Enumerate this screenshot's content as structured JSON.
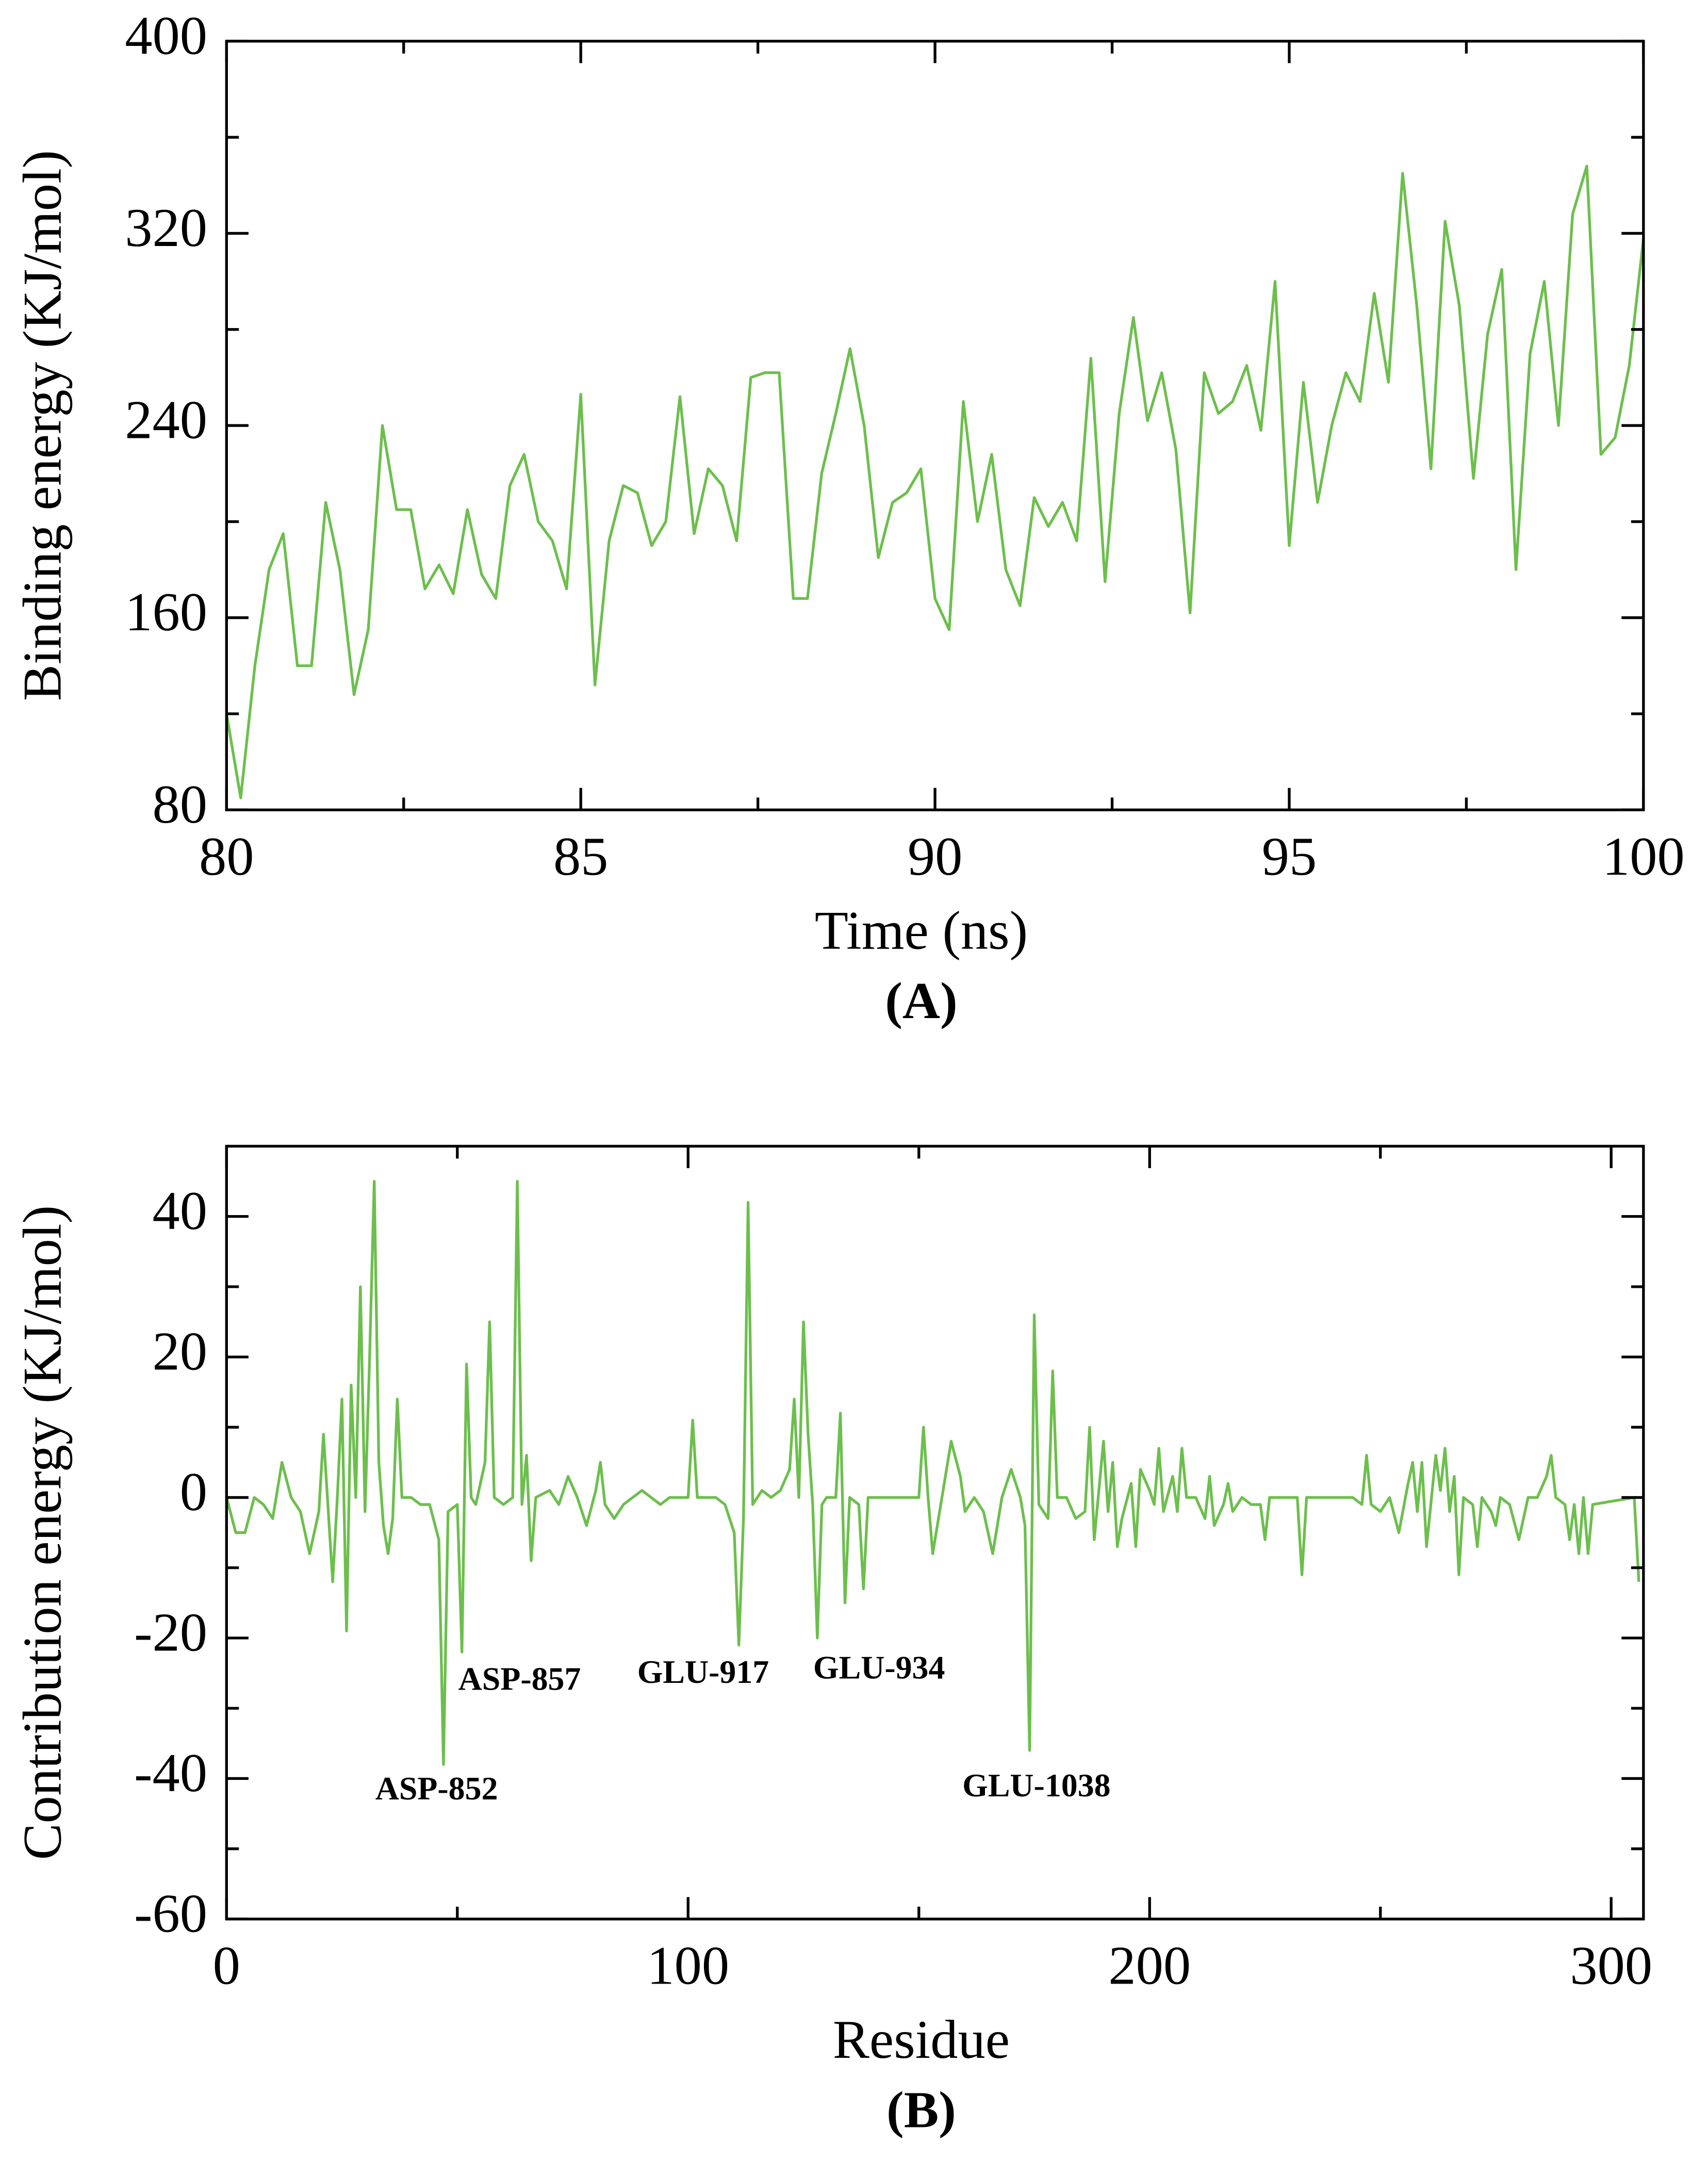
{
  "chart_data": [
    {
      "type": "line",
      "xlabel": "Time (ns)",
      "ylabel": "Binding energy (KJ/mol)",
      "panel_label": "(A)",
      "xlim": [
        80,
        100
      ],
      "xticks": [
        80,
        85,
        90,
        95,
        100
      ],
      "xminor": [
        82.5,
        87.5,
        92.5,
        97.5
      ],
      "ylim": [
        80,
        400
      ],
      "yticks": [
        80,
        160,
        240,
        320,
        400
      ],
      "yminor": [
        120,
        200,
        280,
        360
      ],
      "series": [
        {
          "color": "#6cbf4c",
          "x": [
            80,
            80.2,
            80.4,
            80.6,
            80.8,
            81,
            81.2,
            81.4,
            81.6,
            81.8,
            82,
            82.2,
            82.4,
            82.6,
            82.8,
            83,
            83.2,
            83.4,
            83.6,
            83.8,
            84,
            84.2,
            84.4,
            84.6,
            84.8,
            85,
            85.2,
            85.4,
            85.6,
            85.8,
            86,
            86.2,
            86.4,
            86.6,
            86.8,
            87,
            87.2,
            87.4,
            87.6,
            87.8,
            88,
            88.2,
            88.4,
            88.6,
            88.8,
            89,
            89.2,
            89.4,
            89.6,
            89.8,
            90,
            90.2,
            90.4,
            90.6,
            90.8,
            91,
            91.2,
            91.4,
            91.6,
            91.8,
            92,
            92.2,
            92.4,
            92.6,
            92.8,
            93,
            93.2,
            93.4,
            93.6,
            93.8,
            94,
            94.2,
            94.4,
            94.6,
            94.8,
            95,
            95.2,
            95.4,
            95.6,
            95.8,
            96,
            96.2,
            96.4,
            96.6,
            96.8,
            97,
            97.2,
            97.4,
            97.6,
            97.8,
            98,
            98.2,
            98.4,
            98.6,
            98.8,
            99,
            99.2,
            99.4,
            99.6,
            99.8,
            100
          ],
          "values": [
            120,
            85,
            140,
            180,
            195,
            140,
            140,
            208,
            180,
            128,
            155,
            240,
            205,
            205,
            172,
            182,
            170,
            205,
            178,
            168,
            215,
            228,
            200,
            192,
            172,
            253,
            132,
            192,
            215,
            212,
            190,
            200,
            252,
            195,
            222,
            215,
            192,
            260,
            262,
            262,
            168,
            168,
            220,
            245,
            272,
            240,
            185,
            208,
            212,
            222,
            168,
            155,
            250,
            200,
            228,
            180,
            165,
            210,
            198,
            208,
            192,
            268,
            175,
            245,
            285,
            242,
            262,
            230,
            162,
            262,
            245,
            250,
            265,
            238,
            300,
            190,
            258,
            208,
            240,
            262,
            250,
            295,
            258,
            345,
            290,
            222,
            325,
            290,
            218,
            278,
            305,
            180,
            270,
            300,
            240,
            328,
            348,
            228,
            235,
            265,
            318
          ]
        }
      ]
    },
    {
      "type": "line",
      "xlabel": "Residue",
      "ylabel": "Contribution energy (KJ/mol)",
      "panel_label": "(B)",
      "xlim": [
        0,
        307
      ],
      "xticks": [
        0,
        100,
        200,
        300
      ],
      "xminor": [
        50,
        150,
        250
      ],
      "ylim": [
        -60,
        50
      ],
      "yticks": [
        -60,
        -40,
        -20,
        0,
        20,
        40
      ],
      "yminor": [
        -50,
        -30,
        -10,
        10,
        30
      ],
      "annotations": [
        {
          "text": "ASP-852",
          "x": 47,
          "y": -38
        },
        {
          "text": "ASP-857",
          "x": 51,
          "y": -22
        },
        {
          "text": "GLU-917",
          "x": 111,
          "y": -21
        },
        {
          "text": "GLU-934",
          "x": 128,
          "y": -20
        },
        {
          "text": "GLU-1038",
          "x": 174,
          "y": -36
        }
      ],
      "series": [
        {
          "color": "#6cbf4c",
          "x": [
            0,
            2,
            4,
            6,
            8,
            10,
            12,
            14,
            16,
            18,
            20,
            21,
            23,
            24,
            25,
            26,
            27,
            28,
            29,
            30,
            31,
            32,
            33,
            34,
            35,
            36,
            37,
            38,
            40,
            42,
            44,
            46,
            47,
            48,
            50,
            51,
            52,
            53,
            54,
            56,
            57,
            58,
            60,
            62,
            63,
            64,
            65,
            66,
            67,
            70,
            72,
            74,
            76,
            78,
            80,
            81,
            82,
            84,
            86,
            88,
            90,
            92,
            94,
            96,
            98,
            100,
            101,
            102,
            104,
            106,
            108,
            110,
            111,
            112,
            113,
            114,
            116,
            118,
            120,
            122,
            123,
            124,
            125,
            126,
            127,
            128,
            129,
            130,
            132,
            133,
            134,
            135,
            137,
            138,
            139,
            142,
            146,
            150,
            151,
            152,
            153,
            155,
            157,
            159,
            160,
            162,
            164,
            166,
            168,
            170,
            172,
            173,
            174,
            175,
            176,
            178,
            179,
            180,
            182,
            184,
            186,
            187,
            188,
            190,
            191,
            192,
            193,
            194,
            196,
            197,
            198,
            200,
            201,
            202,
            203,
            205,
            206,
            207,
            208,
            210,
            212,
            213,
            214,
            216,
            217,
            218,
            220,
            222,
            224,
            225,
            226,
            228,
            230,
            232,
            233,
            234,
            236,
            240,
            244,
            246,
            247,
            248,
            250,
            252,
            254,
            256,
            257,
            258,
            259,
            260,
            262,
            263,
            264,
            265,
            266,
            267,
            268,
            270,
            271,
            272,
            274,
            275,
            276,
            278,
            280,
            282,
            284,
            286,
            287,
            288,
            290,
            291,
            292,
            293,
            294,
            295,
            296,
            305,
            306
          ],
          "values": [
            0,
            -5,
            -5,
            0,
            -1,
            -3,
            5,
            0,
            -2,
            -8,
            -2,
            9,
            -12,
            0,
            14,
            -19,
            16,
            0,
            30,
            -2,
            20,
            45,
            5,
            -4,
            -8,
            -3,
            14,
            0,
            0,
            -1,
            -1,
            -6,
            -38,
            -2,
            -1,
            -22,
            19,
            0,
            -1,
            5,
            25,
            0,
            -1,
            0,
            45,
            -1,
            6,
            -9,
            0,
            1,
            -1,
            3,
            0,
            -4,
            1,
            5,
            -1,
            -3,
            -1,
            0,
            1,
            0,
            -1,
            0,
            0,
            0,
            11,
            0,
            0,
            0,
            -1,
            -5,
            -21,
            -3,
            42,
            -1,
            1,
            0,
            1,
            4,
            14,
            0,
            25,
            9,
            -1,
            -20,
            -1,
            0,
            0,
            12,
            -15,
            0,
            -1,
            -13,
            0,
            0,
            0,
            0,
            10,
            0,
            -8,
            0,
            8,
            3,
            -2,
            0,
            -2,
            -8,
            0,
            4,
            0,
            -4,
            -36,
            26,
            -1,
            -3,
            18,
            0,
            0,
            -3,
            -2,
            10,
            -6,
            8,
            -2,
            5,
            -7,
            -3,
            2,
            -7,
            4,
            1,
            -1,
            7,
            -2,
            3,
            -2,
            7,
            0,
            0,
            -3,
            3,
            -4,
            -1,
            2,
            -2,
            0,
            -1,
            -1,
            -6,
            0,
            0,
            0,
            0,
            -11,
            0,
            0,
            0,
            0,
            -1,
            6,
            -1,
            -2,
            0,
            -5,
            2,
            5,
            -2,
            5,
            -7,
            6,
            1,
            7,
            -2,
            3,
            -11,
            0,
            -1,
            -7,
            0,
            -2,
            -4,
            0,
            -1,
            -6,
            0,
            0,
            3,
            6,
            0,
            -1,
            -6,
            -1,
            -8,
            0,
            -8,
            -1,
            0,
            -12
          ]
        }
      ]
    }
  ]
}
